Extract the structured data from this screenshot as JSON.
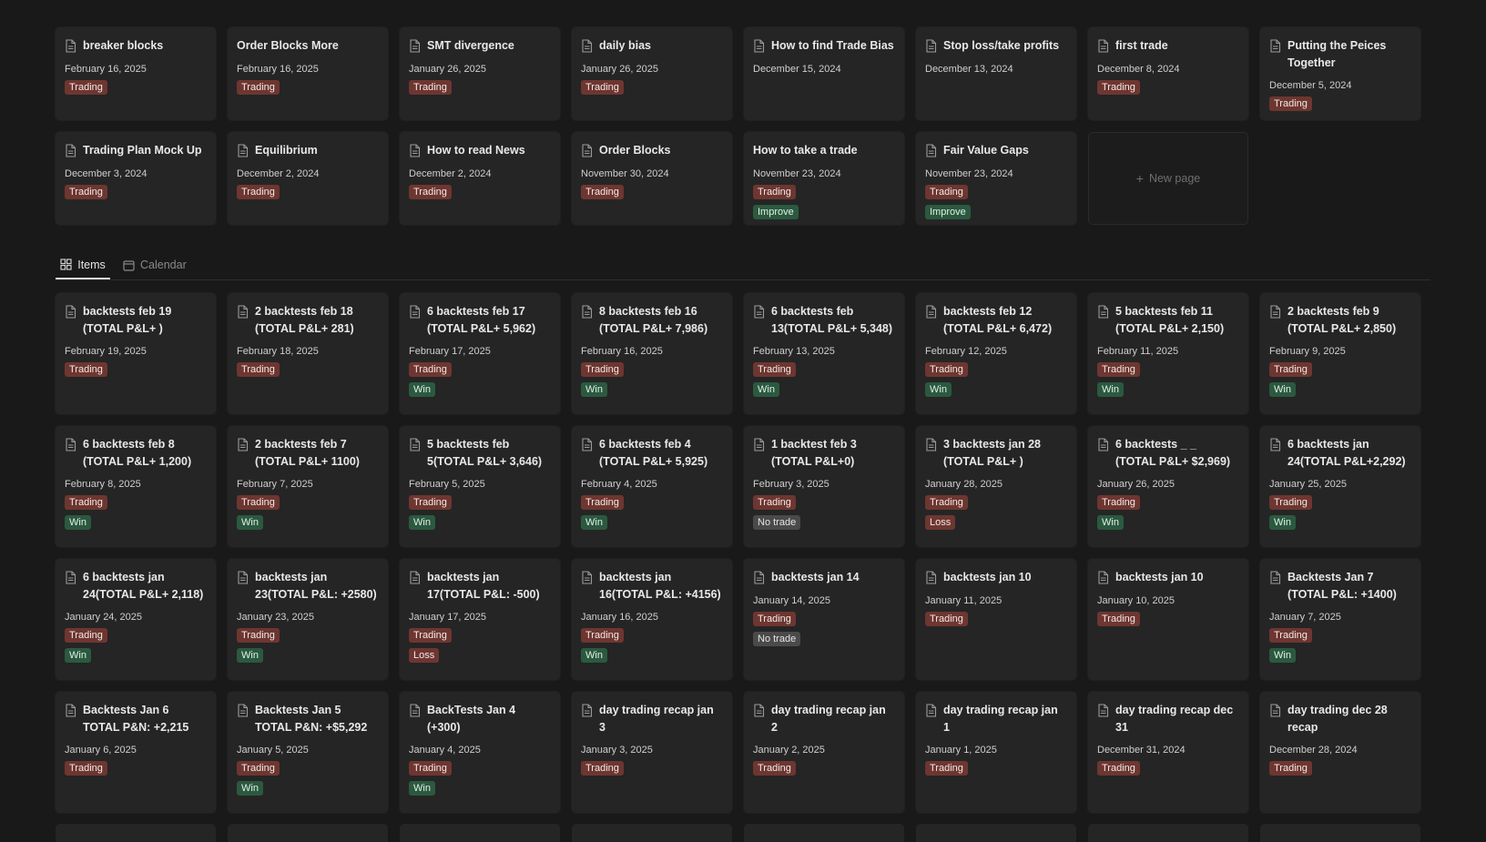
{
  "top_cards": [
    {
      "title": "breaker blocks",
      "date": "February 16, 2025",
      "tags": [
        "Trading"
      ]
    },
    {
      "title": "Order Blocks More",
      "date": "February 16, 2025",
      "tags": [
        "Trading"
      ],
      "noicon": true
    },
    {
      "title": "SMT divergence",
      "date": "January 26, 2025",
      "tags": [
        "Trading"
      ]
    },
    {
      "title": "daily bias",
      "date": "January 26, 2025",
      "tags": [
        "Trading"
      ]
    },
    {
      "title": "How to find Trade Bias",
      "date": "December 15, 2024",
      "tags": []
    },
    {
      "title": "Stop loss/take profits",
      "date": "December 13, 2024",
      "tags": []
    },
    {
      "title": "first trade",
      "date": "December 8, 2024",
      "tags": [
        "Trading"
      ]
    },
    {
      "title": "Putting the Peices Together",
      "date": "December 5, 2024",
      "tags": [
        "Trading"
      ]
    },
    {
      "title": "Trading Plan Mock Up",
      "date": "December 3, 2024",
      "tags": [
        "Trading"
      ]
    },
    {
      "title": "Equilibrium",
      "date": "December 2, 2024",
      "tags": [
        "Trading"
      ]
    },
    {
      "title": "How to read News",
      "date": "December 2, 2024",
      "tags": [
        "Trading"
      ]
    },
    {
      "title": "Order Blocks",
      "date": "November 30, 2024",
      "tags": [
        "Trading"
      ]
    },
    {
      "title": "How to take a trade",
      "date": "November 23, 2024",
      "tags": [
        "Trading",
        "Improve"
      ],
      "noicon": true
    },
    {
      "title": "Fair Value Gaps",
      "date": "November 23, 2024",
      "tags": [
        "Trading",
        "Improve"
      ]
    }
  ],
  "new_page_label": "New page",
  "views": {
    "items": "Items",
    "calendar": "Calendar"
  },
  "bottom_cards": [
    {
      "title": "backtests feb 19 (TOTAL P&L+ )",
      "date": "February 19, 2025",
      "tags": [
        "Trading"
      ]
    },
    {
      "title": "2 backtests feb 18 (TOTAL P&L+ 281)",
      "date": "February 18, 2025",
      "tags": [
        "Trading"
      ]
    },
    {
      "title": "6 backtests feb 17 (TOTAL P&L+ 5,962)",
      "date": "February 17, 2025",
      "tags": [
        "Trading",
        "Win"
      ]
    },
    {
      "title": "8 backtests feb 16 (TOTAL P&L+ 7,986)",
      "date": "February 16, 2025",
      "tags": [
        "Trading",
        "Win"
      ]
    },
    {
      "title": "6 backtests feb 13(TOTAL P&L+ 5,348)",
      "date": "February 13, 2025",
      "tags": [
        "Trading",
        "Win"
      ]
    },
    {
      "title": "backtests feb 12 (TOTAL P&L+ 6,472)",
      "date": "February 12, 2025",
      "tags": [
        "Trading",
        "Win"
      ]
    },
    {
      "title": "5 backtests feb 11 (TOTAL P&L+ 2,150)",
      "date": "February 11, 2025",
      "tags": [
        "Trading",
        "Win"
      ]
    },
    {
      "title": "2 backtests feb 9 (TOTAL P&L+ 2,850)",
      "date": "February 9, 2025",
      "tags": [
        "Trading",
        "Win"
      ]
    },
    {
      "title": "6 backtests feb 8 (TOTAL P&L+ 1,200)",
      "date": "February 8, 2025",
      "tags": [
        "Trading",
        "Win"
      ]
    },
    {
      "title": "2 backtests feb 7 (TOTAL P&L+ 1100)",
      "date": "February 7, 2025",
      "tags": [
        "Trading",
        "Win"
      ]
    },
    {
      "title": "5 backtests feb 5(TOTAL P&L+ 3,646)",
      "date": "February 5, 2025",
      "tags": [
        "Trading",
        "Win"
      ]
    },
    {
      "title": "6 backtests feb 4 (TOTAL P&L+ 5,925)",
      "date": "February 4, 2025",
      "tags": [
        "Trading",
        "Win"
      ]
    },
    {
      "title": "1 backtest feb 3 (TOTAL P&L+0)",
      "date": "February 3, 2025",
      "tags": [
        "Trading",
        "No trade"
      ]
    },
    {
      "title": "3 backtests jan 28 (TOTAL P&L+ )",
      "date": "January 28, 2025",
      "tags": [
        "Trading",
        "Loss"
      ]
    },
    {
      "title": "6 backtests _ _ (TOTAL P&L+ $2,969)",
      "date": "January 26, 2025",
      "tags": [
        "Trading",
        "Win"
      ]
    },
    {
      "title": "6 backtests jan 24(TOTAL P&L+2,292)",
      "date": "January 25, 2025",
      "tags": [
        "Trading",
        "Win"
      ]
    },
    {
      "title": "6 backtests jan 24(TOTAL P&L+ 2,118)",
      "date": "January 24, 2025",
      "tags": [
        "Trading",
        "Win"
      ]
    },
    {
      "title": "backtests jan 23(TOTAL P&L: +2580)",
      "date": "January 23, 2025",
      "tags": [
        "Trading",
        "Win"
      ]
    },
    {
      "title": "backtests jan 17(TOTAL P&L: -500)",
      "date": "January 17, 2025",
      "tags": [
        "Trading",
        "Loss"
      ]
    },
    {
      "title": "backtests jan 16(TOTAL P&L: +4156)",
      "date": "January 16, 2025",
      "tags": [
        "Trading",
        "Win"
      ]
    },
    {
      "title": "backtests jan 14",
      "date": "January 14, 2025",
      "tags": [
        "Trading",
        "No trade"
      ]
    },
    {
      "title": "backtests jan 10",
      "date": "January 11, 2025",
      "tags": [
        "Trading"
      ]
    },
    {
      "title": "backtests jan 10",
      "date": "January 10, 2025",
      "tags": [
        "Trading"
      ]
    },
    {
      "title": "Backtests Jan 7 (TOTAL P&L: +1400)",
      "date": "January 7, 2025",
      "tags": [
        "Trading",
        "Win"
      ]
    },
    {
      "title": "Backtests Jan 6 TOTAL P&N: +2,215",
      "date": "January 6, 2025",
      "tags": [
        "Trading"
      ]
    },
    {
      "title": "Backtests Jan 5 TOTAL P&N: +$5,292",
      "date": "January 5, 2025",
      "tags": [
        "Trading",
        "Win"
      ]
    },
    {
      "title": "BackTests  Jan 4 (+300)",
      "date": "January 4, 2025",
      "tags": [
        "Trading",
        "Win"
      ]
    },
    {
      "title": "day trading recap jan 3",
      "date": "January 3, 2025",
      "tags": [
        "Trading"
      ]
    },
    {
      "title": "day trading recap jan 2",
      "date": "January 2, 2025",
      "tags": [
        "Trading"
      ]
    },
    {
      "title": "day trading recap jan 1",
      "date": "January 1, 2025",
      "tags": [
        "Trading"
      ]
    },
    {
      "title": "day trading recap dec 31",
      "date": "December 31, 2024",
      "tags": [
        "Trading"
      ]
    },
    {
      "title": "day trading dec 28 recap",
      "date": "December 28, 2024",
      "tags": [
        "Trading"
      ]
    }
  ],
  "tag_colors": {
    "Trading": "#6e3630",
    "Win": "#2b5940",
    "Improve": "#2b5940",
    "Loss": "#6e3630",
    "No trade": "#4a4a4a"
  },
  "icons": {
    "card": "document-icon",
    "items_view": "grid-icon",
    "calendar_view": "calendar-icon",
    "new_page": "plus-icon"
  }
}
